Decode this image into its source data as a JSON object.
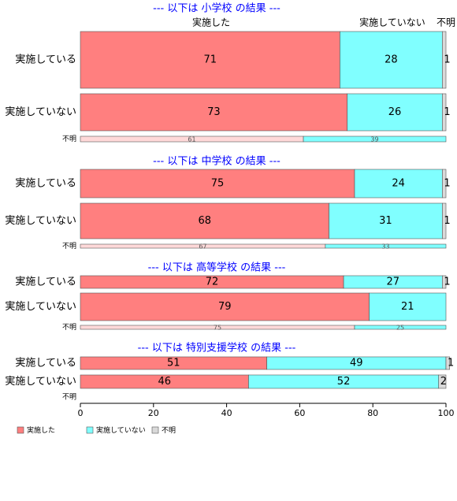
{
  "chart_data": {
    "type": "bar",
    "orientation": "horizontal",
    "stacked": true,
    "xlim": [
      0,
      100
    ],
    "x_ticks": [
      "0",
      "20",
      "40",
      "60",
      "80",
      "100"
    ],
    "legend_position": "bottom-left",
    "series": [
      {
        "name": "実施した",
        "color": "#ff7f7f"
      },
      {
        "name": "実施していない",
        "color": "#80ffff"
      },
      {
        "name": "不明",
        "color": "#d9d9d9"
      }
    ],
    "column_headers": [
      "実施した",
      "実施していない",
      "不明"
    ],
    "panels": [
      {
        "title": "--- 以下は 小学校 の結果 ---",
        "rows": [
          {
            "category": "実施している",
            "values": [
              71,
              28,
              1
            ],
            "labels": [
              "71",
              "28",
              "1"
            ]
          },
          {
            "category": "実施していない",
            "values": [
              73,
              26,
              1
            ],
            "labels": [
              "73",
              "26",
              "1"
            ]
          },
          {
            "category": "不明",
            "values": [
              61,
              39,
              0
            ],
            "labels": [
              "61",
              "39",
              ""
            ]
          }
        ]
      },
      {
        "title": "--- 以下は 中学校 の結果 ---",
        "rows": [
          {
            "category": "実施している",
            "values": [
              75,
              24,
              1
            ],
            "labels": [
              "75",
              "24",
              "1"
            ]
          },
          {
            "category": "実施していない",
            "values": [
              68,
              31,
              1
            ],
            "labels": [
              "68",
              "31",
              "1"
            ]
          },
          {
            "category": "不明",
            "values": [
              67,
              33,
              0
            ],
            "labels": [
              "67",
              "33",
              ""
            ]
          }
        ]
      },
      {
        "title": "--- 以下は 高等学校 の結果 ---",
        "rows": [
          {
            "category": "実施している",
            "values": [
              72,
              27,
              1
            ],
            "labels": [
              "72",
              "27",
              "1"
            ]
          },
          {
            "category": "実施していない",
            "values": [
              79,
              21,
              0
            ],
            "labels": [
              "79",
              "21",
              ""
            ]
          },
          {
            "category": "不明",
            "values": [
              75,
              25,
              0
            ],
            "labels": [
              "75",
              "25",
              ""
            ]
          }
        ]
      },
      {
        "title": "--- 以下は 特別支援学校 の結果 ---",
        "rows": [
          {
            "category": "実施している",
            "values": [
              51,
              49,
              1
            ],
            "labels": [
              "51",
              "49",
              "1"
            ]
          },
          {
            "category": "実施していない",
            "values": [
              46,
              52,
              2
            ],
            "labels": [
              "46",
              "52",
              "2"
            ]
          },
          {
            "category": "不明",
            "values": [
              0,
              0,
              0
            ],
            "labels": [
              "",
              "",
              ""
            ]
          }
        ]
      }
    ]
  }
}
